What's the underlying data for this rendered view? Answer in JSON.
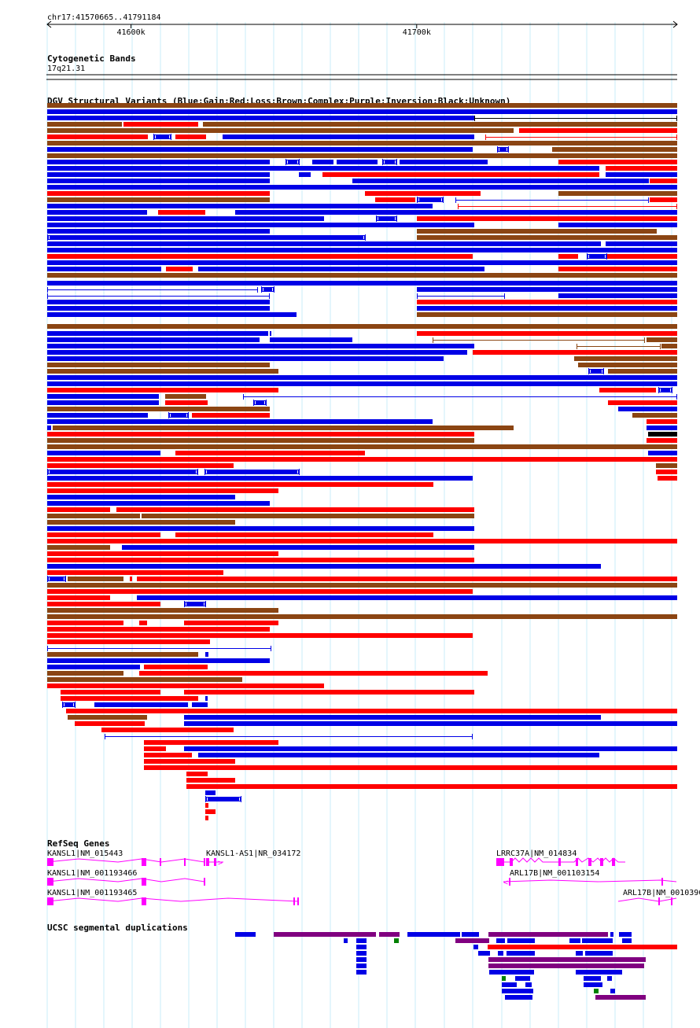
{
  "ruler": {
    "location": "chr17:41570665..41791184",
    "ticks": [
      {
        "pos": 41600000,
        "label": "41600k"
      },
      {
        "pos": 41700000,
        "label": "41700k"
      }
    ]
  },
  "view": {
    "start": 41570665,
    "end": 41791184
  },
  "cytoband": {
    "title": "Cytogenetic Bands",
    "band": "17q21.31"
  },
  "dgv": {
    "title": "DGV Structural Variants (Blue:Gain;Red:Loss;Brown:Complex;Purple:Inversion;Black:Unknown)",
    "colors": {
      "gain": "#0000e6",
      "loss": "#ff0000",
      "complex": "#8b4513",
      "inversion": "#800080",
      "unknown": "#000000"
    }
  },
  "refseq": {
    "title": "RefSeq Genes",
    "color": "#ff00ff",
    "genes": [
      {
        "label": "KANSL1|NM_015443"
      },
      {
        "label": "KANSL1-AS1|NR_034172"
      },
      {
        "label": "LRRC37A|NM_014834"
      },
      {
        "label": "KANSL1|NM_001193466"
      },
      {
        "label": "ARL17B|NM_001103154"
      },
      {
        "label": "KANSL1|NM_001193465"
      },
      {
        "label": "ARL17B|NM_0010390"
      }
    ]
  },
  "segdups": {
    "title": "UCSC segmental duplications"
  }
}
